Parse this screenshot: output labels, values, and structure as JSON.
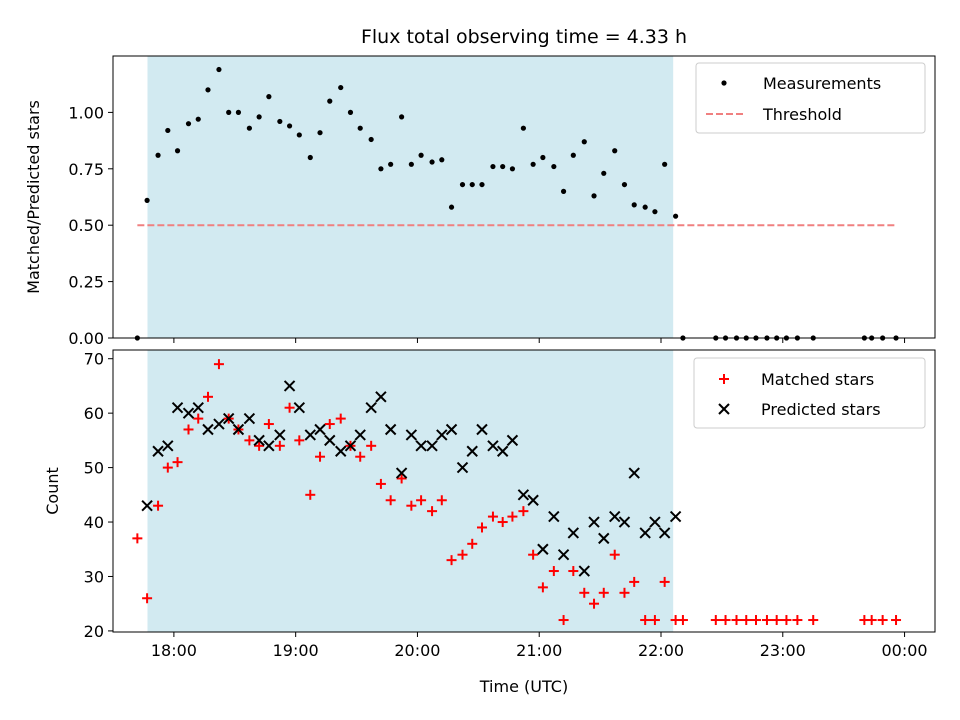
{
  "chart_data": [
    {
      "type": "scatter",
      "title": "Flux total observing time = 4.33 h",
      "ylabel": "Matched/Predicted stars",
      "xlabel": "",
      "x_unit": "hours UTC (values above 24 are after midnight)",
      "xlim": [
        "17:30",
        "00:15"
      ],
      "ylim": [
        0,
        1.25
      ],
      "yticks": [
        "0.00",
        "0.25",
        "0.50",
        "0.75",
        "1.00"
      ],
      "grid": false,
      "legend": "top-right",
      "shaded_interval": [
        "17:47",
        "22:06"
      ],
      "shade_color": "#add8e6",
      "series": [
        {
          "name": "Measurements",
          "color": "#000000",
          "marker": "dot",
          "x": [
            17.7,
            17.78,
            17.87,
            17.95,
            18.03,
            18.12,
            18.2,
            18.28,
            18.37,
            18.45,
            18.53,
            18.62,
            18.7,
            18.78,
            18.87,
            18.95,
            19.03,
            19.12,
            19.2,
            19.28,
            19.37,
            19.45,
            19.53,
            19.62,
            19.7,
            19.78,
            19.87,
            19.95,
            20.03,
            20.12,
            20.2,
            20.28,
            20.37,
            20.45,
            20.53,
            20.62,
            20.7,
            20.78,
            20.87,
            20.95,
            21.03,
            21.12,
            21.2,
            21.28,
            21.37,
            21.45,
            21.53,
            21.62,
            21.7,
            21.78,
            21.87,
            21.95,
            22.03,
            22.12,
            22.18,
            22.45,
            22.53,
            22.62,
            22.7,
            22.78,
            22.87,
            22.95,
            23.03,
            23.12,
            23.25,
            23.67,
            23.73,
            23.82,
            23.93
          ],
          "y": [
            0.0,
            0.61,
            0.81,
            0.92,
            0.83,
            0.95,
            0.97,
            1.1,
            1.19,
            1.0,
            1.0,
            0.93,
            0.98,
            1.07,
            0.96,
            0.94,
            0.9,
            0.8,
            0.91,
            1.05,
            1.11,
            1.0,
            0.93,
            0.88,
            0.75,
            0.77,
            0.98,
            0.77,
            0.81,
            0.78,
            0.79,
            0.58,
            0.68,
            0.68,
            0.68,
            0.76,
            0.76,
            0.75,
            0.93,
            0.77,
            0.8,
            0.76,
            0.65,
            0.81,
            0.87,
            0.63,
            0.73,
            0.83,
            0.68,
            0.59,
            0.58,
            0.56,
            0.77,
            0.54,
            0.0,
            0.0,
            0.0,
            0.0,
            0.0,
            0.0,
            0.0,
            0.0,
            0.0,
            0.0,
            0.0,
            0.0,
            0.0,
            0.0,
            0.0
          ]
        },
        {
          "name": "Threshold",
          "color": "#f08080",
          "line_style": "dashed",
          "x": [
            17.7,
            23.93
          ],
          "y": [
            0.5,
            0.5
          ]
        }
      ]
    },
    {
      "type": "scatter",
      "title": "",
      "ylabel": "Count",
      "xlabel": "Time (UTC)",
      "x_unit": "hours UTC (values above 24 are after midnight)",
      "xlim": [
        "17:30",
        "00:15"
      ],
      "ylim": [
        19.8,
        71.6
      ],
      "xticks": [
        "18:00",
        "19:00",
        "20:00",
        "21:00",
        "22:00",
        "23:00",
        "00:00"
      ],
      "yticks": [
        "20",
        "30",
        "40",
        "50",
        "60",
        "70"
      ],
      "grid": false,
      "legend": "top-right",
      "shaded_interval": [
        "17:47",
        "22:06"
      ],
      "shade_color": "#add8e6",
      "series": [
        {
          "name": "Matched stars",
          "color": "#ff0000",
          "marker": "plus",
          "x": [
            17.7,
            17.78,
            17.87,
            17.95,
            18.03,
            18.12,
            18.2,
            18.28,
            18.37,
            18.45,
            18.53,
            18.62,
            18.7,
            18.78,
            18.87,
            18.95,
            19.03,
            19.12,
            19.2,
            19.28,
            19.37,
            19.45,
            19.53,
            19.62,
            19.7,
            19.78,
            19.87,
            19.95,
            20.03,
            20.12,
            20.2,
            20.28,
            20.37,
            20.45,
            20.53,
            20.62,
            20.7,
            20.78,
            20.87,
            20.95,
            21.03,
            21.12,
            21.2,
            21.28,
            21.37,
            21.45,
            21.53,
            21.62,
            21.7,
            21.78,
            21.87,
            21.95,
            22.03,
            22.12,
            22.18,
            22.45,
            22.53,
            22.62,
            22.7,
            22.78,
            22.87,
            22.95,
            23.03,
            23.12,
            23.25,
            23.67,
            23.73,
            23.82,
            23.93
          ],
          "y": [
            37,
            26,
            43,
            50,
            51,
            57,
            59,
            63,
            69,
            59,
            57,
            55,
            54,
            58,
            54,
            61,
            55,
            45,
            52,
            58,
            59,
            54,
            52,
            54,
            47,
            44,
            48,
            43,
            44,
            42,
            44,
            33,
            34,
            36,
            39,
            41,
            40,
            41,
            42,
            34,
            28,
            31,
            22,
            31,
            27,
            25,
            27,
            34,
            27,
            29,
            22,
            22,
            29,
            22,
            22,
            22,
            22,
            22,
            22,
            22,
            22,
            22,
            22,
            22,
            22,
            22,
            22,
            22,
            22
          ]
        },
        {
          "name": "Predicted stars",
          "color": "#000000",
          "marker": "x",
          "x": [
            17.78,
            17.87,
            17.95,
            18.03,
            18.12,
            18.2,
            18.28,
            18.37,
            18.45,
            18.53,
            18.62,
            18.7,
            18.78,
            18.87,
            18.95,
            19.03,
            19.12,
            19.2,
            19.28,
            19.37,
            19.45,
            19.53,
            19.62,
            19.7,
            19.78,
            19.87,
            19.95,
            20.03,
            20.12,
            20.2,
            20.28,
            20.37,
            20.45,
            20.53,
            20.62,
            20.7,
            20.78,
            20.87,
            20.95,
            21.03,
            21.12,
            21.2,
            21.28,
            21.37,
            21.45,
            21.53,
            21.62,
            21.7,
            21.78,
            21.87,
            21.95,
            22.03,
            22.12
          ],
          "y": [
            43,
            53,
            54,
            61,
            60,
            61,
            57,
            58,
            59,
            57,
            59,
            55,
            54,
            56,
            65,
            61,
            56,
            57,
            55,
            53,
            54,
            56,
            61,
            63,
            57,
            49,
            56,
            54,
            54,
            56,
            57,
            50,
            53,
            57,
            54,
            53,
            55,
            45,
            44,
            35,
            41,
            34,
            38,
            31,
            40,
            37,
            41,
            40,
            49,
            38,
            40,
            38,
            41
          ]
        }
      ]
    }
  ]
}
